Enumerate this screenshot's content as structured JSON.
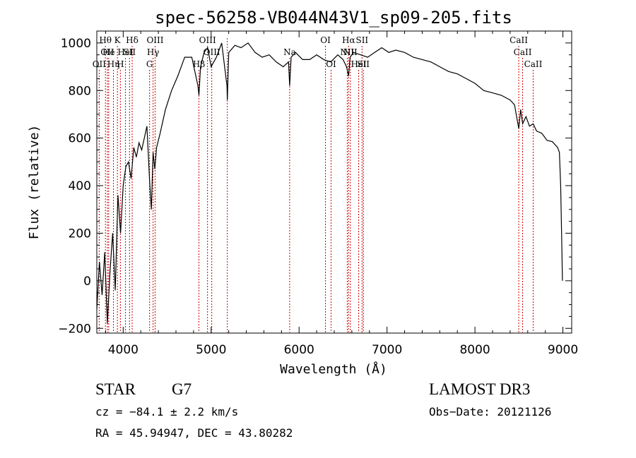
{
  "chart_data": {
    "type": "line",
    "title": "spec-56258-VB044N43V1_sp09-205.fits",
    "xlabel": "Wavelength (Å)",
    "ylabel": "Flux (relative)",
    "xlim": [
      3700,
      9100
    ],
    "ylim": [
      -220,
      1050
    ],
    "xticks": [
      4000,
      5000,
      6000,
      7000,
      8000,
      9000
    ],
    "xtick_labels": [
      "4000",
      "5000",
      "6000",
      "7000",
      "8000",
      "9000"
    ],
    "yticks": [
      -200,
      0,
      200,
      400,
      600,
      800,
      1000
    ],
    "ytick_labels": [
      "−200",
      "0",
      "200",
      "400",
      "600",
      "800",
      "1000"
    ],
    "line_color": "#000000",
    "marker_color": "#cc0000",
    "series": [
      {
        "name": "flux",
        "x": [
          3700,
          3730,
          3760,
          3790,
          3820,
          3850,
          3880,
          3910,
          3940,
          3970,
          4000,
          4030,
          4060,
          4090,
          4120,
          4150,
          4180,
          4210,
          4240,
          4270,
          4300,
          4320,
          4340,
          4360,
          4380,
          4420,
          4480,
          4550,
          4620,
          4700,
          4780,
          4850,
          4861,
          4880,
          4920,
          4960,
          5000,
          5060,
          5120,
          5180,
          5184,
          5200,
          5270,
          5340,
          5420,
          5500,
          5580,
          5660,
          5740,
          5820,
          5880,
          5893,
          5910,
          5960,
          6040,
          6120,
          6200,
          6280,
          6360,
          6440,
          6500,
          6540,
          6563,
          6580,
          6620,
          6700,
          6780,
          6860,
          6940,
          7020,
          7100,
          7200,
          7300,
          7400,
          7500,
          7600,
          7700,
          7800,
          7900,
          8000,
          8100,
          8200,
          8300,
          8400,
          8450,
          8498,
          8520,
          8542,
          8580,
          8620,
          8662,
          8700,
          8760,
          8820,
          8880,
          8940,
          8960,
          8975,
          8985,
          8995
        ],
        "y": [
          -120,
          80,
          -60,
          120,
          -180,
          40,
          200,
          -40,
          360,
          200,
          400,
          480,
          500,
          430,
          560,
          520,
          580,
          550,
          600,
          650,
          420,
          300,
          540,
          470,
          560,
          620,
          720,
          800,
          860,
          940,
          940,
          820,
          780,
          900,
          960,
          980,
          900,
          940,
          1000,
          820,
          760,
          960,
          990,
          980,
          1000,
          960,
          940,
          950,
          920,
          900,
          920,
          820,
          940,
          960,
          930,
          930,
          950,
          930,
          920,
          950,
          930,
          900,
          860,
          940,
          960,
          950,
          940,
          960,
          980,
          960,
          970,
          960,
          940,
          930,
          920,
          900,
          880,
          870,
          850,
          830,
          800,
          790,
          780,
          760,
          740,
          640,
          720,
          660,
          690,
          650,
          660,
          630,
          620,
          590,
          585,
          560,
          540,
          400,
          200,
          0
        ]
      }
    ],
    "line_markers": [
      {
        "wave": 3727,
        "row": 3,
        "label": "OII"
      },
      {
        "wave": 3798,
        "row": 1,
        "label": "Hθ"
      },
      {
        "wave": 3820,
        "row": 2,
        "label": "OII"
      },
      {
        "wave": 3835,
        "row": 2,
        "label": "He"
      },
      {
        "wave": 3889,
        "row": 3,
        "label": "Hη"
      },
      {
        "wave": 3934,
        "row": 1,
        "label": "K"
      },
      {
        "wave": 3968,
        "row": 3,
        "label": "H"
      },
      {
        "wave": 4026,
        "row": 2,
        "label": "HeI"
      },
      {
        "wave": 4072,
        "row": 2,
        "label": "SII"
      },
      {
        "wave": 4102,
        "row": 1,
        "label": "Hδ"
      },
      {
        "wave": 4300,
        "row": 3,
        "label": "G"
      },
      {
        "wave": 4340,
        "row": 2,
        "label": "Hγ"
      },
      {
        "wave": 4363,
        "row": 1,
        "label": "OIII"
      },
      {
        "wave": 4861,
        "row": 3,
        "label": "Hβ"
      },
      {
        "wave": 4959,
        "row": 1,
        "label": "OIII"
      },
      {
        "wave": 5007,
        "row": 2,
        "label": "OIII"
      },
      {
        "wave": 5184,
        "row": 0,
        "label": ""
      },
      {
        "wave": 5893,
        "row": 2,
        "label": "Na"
      },
      {
        "wave": 6300,
        "row": 1,
        "label": "OI"
      },
      {
        "wave": 6364,
        "row": 3,
        "label": "OI"
      },
      {
        "wave": 6548,
        "row": 2,
        "label": "NII"
      },
      {
        "wave": 6563,
        "row": 1,
        "label": "Hα"
      },
      {
        "wave": 6583,
        "row": 2,
        "label": "NII"
      },
      {
        "wave": 6678,
        "row": 3,
        "label": "HeI"
      },
      {
        "wave": 6716,
        "row": 1,
        "label": "SII"
      },
      {
        "wave": 6731,
        "row": 3,
        "label": "SII"
      },
      {
        "wave": 8498,
        "row": 1,
        "label": "CaII"
      },
      {
        "wave": 8542,
        "row": 2,
        "label": "CaII"
      },
      {
        "wave": 8662,
        "row": 3,
        "label": "CaII"
      }
    ]
  },
  "info": {
    "object": "STAR",
    "subclass": "G7",
    "survey": "LAMOST DR3",
    "cz": "cz = −84.1 ± 2.2 km/s",
    "obs_date": "Obs−Date: 20121126",
    "radec": "RA =  45.94947, DEC =  43.80282"
  }
}
